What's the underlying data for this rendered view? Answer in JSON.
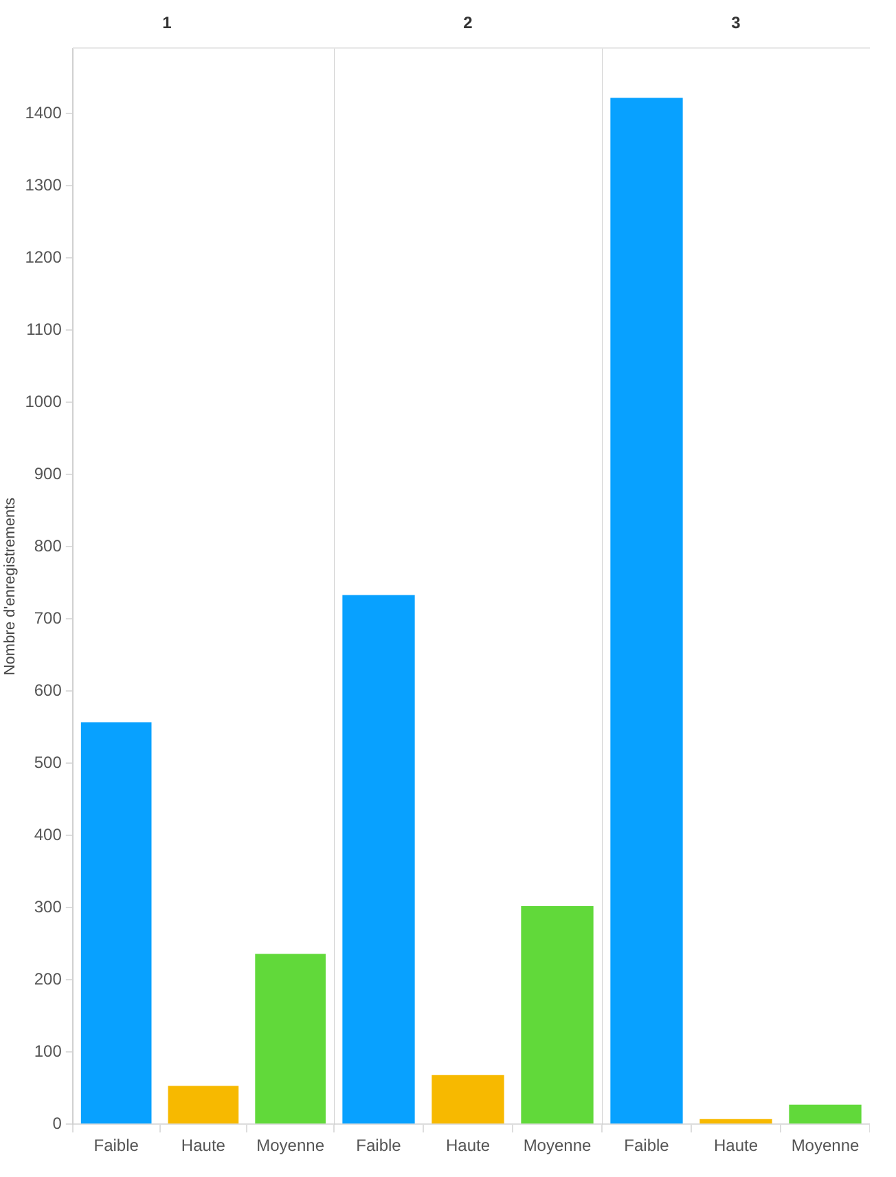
{
  "chart_data": [
    {
      "type": "bar",
      "title": "1",
      "ylabel": "Nombre d'enregistrements",
      "categories": [
        "Faible",
        "Haute",
        "Moyenne"
      ],
      "values": [
        557,
        53,
        236
      ],
      "colors": [
        "#08a1ff",
        "#f7b900",
        "#61d93a"
      ],
      "ylim": [
        0,
        1490
      ],
      "yticks": [
        0,
        100,
        200,
        300,
        400,
        500,
        600,
        700,
        800,
        900,
        1000,
        1100,
        1200,
        1300,
        1400
      ],
      "grid": false
    },
    {
      "type": "bar",
      "title": "2",
      "categories": [
        "Faible",
        "Haute",
        "Moyenne"
      ],
      "values": [
        733,
        68,
        302
      ],
      "colors": [
        "#08a1ff",
        "#f7b900",
        "#61d93a"
      ],
      "ylim": [
        0,
        1490
      ],
      "yticks": [
        0,
        100,
        200,
        300,
        400,
        500,
        600,
        700,
        800,
        900,
        1000,
        1100,
        1200,
        1300,
        1400
      ],
      "grid": false,
      "tick_labels": "x"
    },
    {
      "type": "bar",
      "title": "3",
      "categories": [
        "Faible",
        "Haute",
        "Moyenne"
      ],
      "values": [
        1422,
        7,
        27
      ],
      "colors": [
        "#08a1ff",
        "#f7b900",
        "#61d93a"
      ],
      "ylim": [
        0,
        1490
      ],
      "yticks": [
        0,
        100,
        200,
        300,
        400,
        500,
        600,
        700,
        800,
        900,
        1000,
        1100,
        1200,
        1300,
        1400
      ],
      "grid": false,
      "tick_labels": "x"
    }
  ]
}
